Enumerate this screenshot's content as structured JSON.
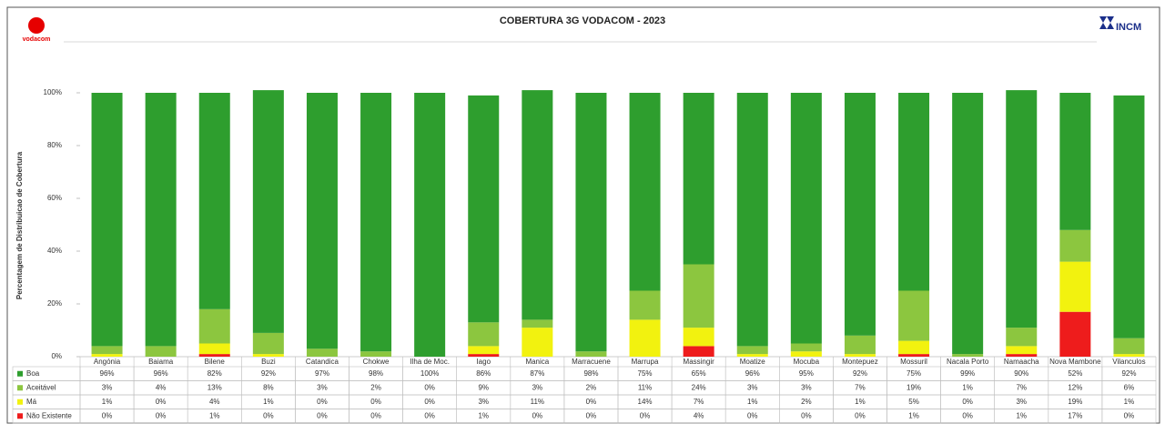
{
  "chart_data": {
    "type": "stacked_bar",
    "title": "COBERTURA 3G VODACOM - 2023",
    "brand": "vodacom",
    "regulator": "INCM",
    "ylabel": "Percentagem de Distribuicao de Cobertura",
    "categories": [
      "Angónia",
      "Baiama",
      "Bilene",
      "Buzi",
      "Catandica",
      "Chokwe",
      "Ilha de Moc.",
      "Iago",
      "Manica",
      "Marracuene",
      "Marrupa",
      "Massingir",
      "Moatize",
      "Mocuba",
      "Montepuez",
      "Mossuril",
      "Nacala Porto",
      "Namaacha",
      "Nova Mambone",
      "Vilanculos"
    ],
    "series": [
      {
        "name": "Não Existente",
        "color": "#ee1c1c",
        "values": [
          0,
          0,
          1,
          0,
          0,
          0,
          0,
          1,
          0,
          0,
          0,
          4,
          0,
          0,
          0,
          1,
          0,
          1,
          17,
          0
        ],
        "value_labels": [
          "0%",
          "0%",
          "1%",
          "0%",
          "0%",
          "0%",
          "0%",
          "1%",
          "0%",
          "0%",
          "0%",
          "4%",
          "0%",
          "0%",
          "0%",
          "1%",
          "0%",
          "1%",
          "17%",
          "0%"
        ]
      },
      {
        "name": "Má",
        "color": "#f2f20f",
        "values": [
          1,
          0,
          4,
          1,
          0,
          0,
          0,
          3,
          11,
          0,
          14,
          7,
          1,
          2,
          1,
          5,
          0,
          3,
          19,
          1
        ],
        "value_labels": [
          "1%",
          "0%",
          "4%",
          "1%",
          "0%",
          "0%",
          "0%",
          "3%",
          "11%",
          "0%",
          "14%",
          "7%",
          "1%",
          "2%",
          "1%",
          "5%",
          "0%",
          "3%",
          "19%",
          "1%"
        ]
      },
      {
        "name": "Aceitável",
        "color": "#8cc63f",
        "values": [
          3,
          4,
          13,
          8,
          3,
          2,
          0,
          9,
          3,
          2,
          11,
          24,
          3,
          3,
          7,
          19,
          1,
          7,
          12,
          6
        ],
        "value_labels": [
          "3%",
          "4%",
          "13%",
          "8%",
          "3%",
          "2%",
          "0%",
          "9%",
          "3%",
          "2%",
          "11%",
          "24%",
          "3%",
          "3%",
          "7%",
          "19%",
          "1%",
          "7%",
          "12%",
          "6%"
        ]
      },
      {
        "name": "Boa",
        "color": "#2e9e2e",
        "values": [
          96,
          96,
          82,
          92,
          97,
          98,
          100,
          86,
          87,
          98,
          75,
          65,
          96,
          95,
          92,
          75,
          99,
          90,
          52,
          92
        ],
        "value_labels": [
          "96%",
          "96%",
          "82%",
          "92%",
          "97%",
          "98%",
          "100%",
          "86%",
          "87%",
          "98%",
          "75%",
          "65%",
          "96%",
          "95%",
          "92%",
          "75%",
          "99%",
          "90%",
          "52%",
          "92%"
        ]
      }
    ],
    "ylim": [
      0,
      100
    ],
    "yticks": [
      {
        "value": 0,
        "label": "0%"
      },
      {
        "value": 20,
        "label": "20%"
      },
      {
        "value": 40,
        "label": "40%"
      },
      {
        "value": 60,
        "label": "60%"
      },
      {
        "value": 80,
        "label": "80%"
      },
      {
        "value": 100,
        "label": "100%"
      }
    ],
    "grid": false
  }
}
